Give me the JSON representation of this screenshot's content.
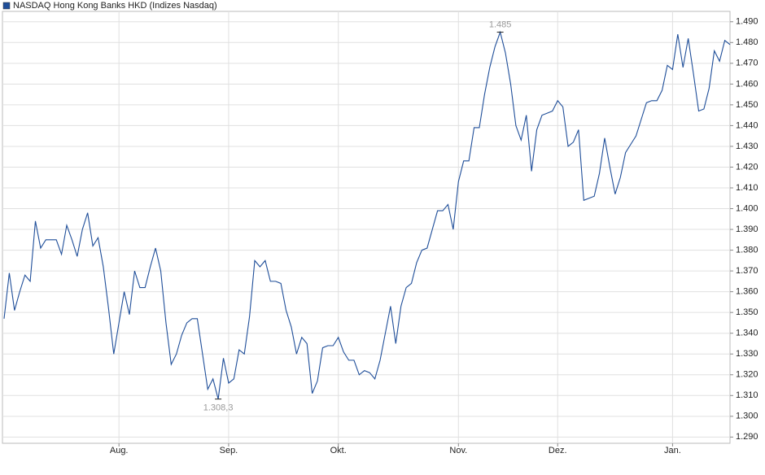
{
  "chart_data": {
    "type": "line",
    "series": [
      {
        "name": "NASDAQ Hong Kong Banks HKD (Indizes Nasdaq)",
        "color": "#1f4e99",
        "values": [
          1.347,
          1.369,
          1.351,
          1.36,
          1.368,
          1.365,
          1.394,
          1.381,
          1.385,
          1.385,
          1.385,
          1.378,
          1.392,
          1.385,
          1.377,
          1.39,
          1.398,
          1.382,
          1.386,
          1.372,
          1.352,
          1.33,
          1.345,
          1.36,
          1.349,
          1.37,
          1.362,
          1.362,
          1.372,
          1.381,
          1.37,
          1.345,
          1.325,
          1.33,
          1.339,
          1.345,
          1.347,
          1.347,
          1.33,
          1.313,
          1.318,
          1.3083,
          1.328,
          1.316,
          1.318,
          1.332,
          1.33,
          1.348,
          1.375,
          1.372,
          1.375,
          1.365,
          1.365,
          1.364,
          1.351,
          1.343,
          1.33,
          1.338,
          1.335,
          1.311,
          1.317,
          1.333,
          1.334,
          1.334,
          1.338,
          1.331,
          1.327,
          1.327,
          1.32,
          1.322,
          1.321,
          1.318,
          1.327,
          1.34,
          1.353,
          1.335,
          1.353,
          1.362,
          1.364,
          1.374,
          1.38,
          1.381,
          1.39,
          1.399,
          1.399,
          1.402,
          1.39,
          1.413,
          1.423,
          1.423,
          1.439,
          1.439,
          1.455,
          1.468,
          1.478,
          1.485,
          1.475,
          1.46,
          1.44,
          1.433,
          1.445,
          1.418,
          1.438,
          1.445,
          1.446,
          1.447,
          1.452,
          1.449,
          1.43,
          1.432,
          1.438,
          1.404,
          1.405,
          1.406,
          1.417,
          1.434,
          1.42,
          1.407,
          1.415,
          1.427,
          1.431,
          1.435,
          1.443,
          1.451,
          1.452,
          1.452,
          1.457,
          1.469,
          1.467,
          1.484,
          1.468,
          1.482,
          1.465,
          1.447,
          1.448,
          1.458,
          1.476,
          1.471,
          1.481,
          1.479
        ],
        "value_labels": [
          null,
          null,
          null,
          null,
          null,
          null,
          null,
          null,
          null,
          null,
          null,
          null,
          null,
          null,
          null,
          null,
          null,
          null,
          null,
          null,
          null,
          null,
          null,
          null,
          null,
          null,
          null,
          null,
          null,
          null,
          null,
          null,
          null,
          null,
          null,
          null,
          null,
          null,
          null,
          null,
          null,
          "1.308,3",
          null,
          null,
          null,
          null,
          null,
          null,
          null,
          null,
          null,
          null,
          null,
          null,
          null,
          null,
          null,
          null,
          null,
          null,
          null,
          null,
          null,
          null,
          null,
          null,
          null,
          null,
          null,
          null,
          null,
          null,
          null,
          null,
          null,
          null,
          null,
          null,
          null,
          null,
          null,
          null,
          null,
          null,
          null,
          null,
          null,
          null,
          null,
          null,
          null,
          null,
          null,
          null,
          null,
          "1.485",
          null,
          null,
          null,
          null,
          null,
          null,
          null,
          null,
          null,
          null,
          null,
          null,
          null,
          null,
          null,
          null,
          null,
          null,
          null,
          null,
          null,
          null,
          null,
          null,
          null,
          null,
          null,
          null,
          null,
          null,
          null,
          null,
          null,
          null,
          null,
          null,
          null,
          null,
          null,
          null,
          null,
          null,
          null,
          null
        ]
      }
    ],
    "categories": [
      null,
      null,
      null,
      null,
      null,
      null,
      null,
      null,
      null,
      null,
      null,
      null,
      null,
      null,
      null,
      null,
      null,
      null,
      null,
      null,
      null,
      null,
      "Aug.",
      null,
      null,
      null,
      null,
      null,
      null,
      null,
      null,
      null,
      null,
      null,
      null,
      null,
      null,
      null,
      null,
      null,
      null,
      null,
      null,
      "Sep.",
      null,
      null,
      null,
      null,
      null,
      null,
      null,
      null,
      null,
      null,
      null,
      null,
      null,
      null,
      null,
      null,
      null,
      null,
      null,
      null,
      "Okt.",
      null,
      null,
      null,
      null,
      null,
      null,
      null,
      null,
      null,
      null,
      null,
      null,
      null,
      null,
      null,
      null,
      null,
      null,
      null,
      null,
      null,
      null,
      "Nov.",
      null,
      null,
      null,
      null,
      null,
      null,
      null,
      null,
      null,
      null,
      null,
      null,
      null,
      null,
      null,
      null,
      null,
      null,
      "Dez.",
      null,
      null,
      null,
      null,
      null,
      null,
      null,
      null,
      null,
      null,
      null,
      null,
      null,
      null,
      null,
      null,
      null,
      null,
      null,
      null,
      null,
      "Jan.",
      null,
      null,
      null,
      null,
      null,
      null,
      null,
      null,
      null,
      null,
      null
    ],
    "ylim": [
      1.287,
      1.495
    ],
    "yticks": [
      {
        "value": 1.29,
        "label": "1.290"
      },
      {
        "value": 1.3,
        "label": "1.300"
      },
      {
        "value": 1.31,
        "label": "1.310"
      },
      {
        "value": 1.32,
        "label": "1.320"
      },
      {
        "value": 1.33,
        "label": "1.330"
      },
      {
        "value": 1.34,
        "label": "1.340"
      },
      {
        "value": 1.35,
        "label": "1.350"
      },
      {
        "value": 1.36,
        "label": "1.360"
      },
      {
        "value": 1.37,
        "label": "1.370"
      },
      {
        "value": 1.38,
        "label": "1.380"
      },
      {
        "value": 1.39,
        "label": "1.390"
      },
      {
        "value": 1.4,
        "label": "1.400"
      },
      {
        "value": 1.41,
        "label": "1.410"
      },
      {
        "value": 1.42,
        "label": "1.420"
      },
      {
        "value": 1.43,
        "label": "1.430"
      },
      {
        "value": 1.44,
        "label": "1.440"
      },
      {
        "value": 1.45,
        "label": "1.450"
      },
      {
        "value": 1.46,
        "label": "1.460"
      },
      {
        "value": 1.47,
        "label": "1.470"
      },
      {
        "value": 1.48,
        "label": "1.480"
      },
      {
        "value": 1.49,
        "label": "1.490"
      }
    ],
    "grid": true,
    "legend": "top-left"
  }
}
